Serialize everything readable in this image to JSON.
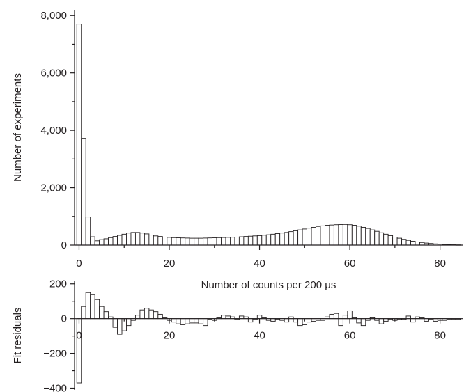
{
  "chart_data": [
    {
      "type": "bar",
      "xlabel": "Number of counts per 200 μs",
      "ylabel": "Number of experiments",
      "xlim": [
        -1,
        85
      ],
      "ylim": [
        0,
        8200
      ],
      "x_ticks": [
        0,
        20,
        40,
        60,
        80
      ],
      "x_tick_labels": [
        "0",
        "20",
        "40",
        "60",
        "80"
      ],
      "y_ticks": [
        0,
        2000,
        4000,
        6000,
        8000
      ],
      "y_tick_labels": [
        "0",
        "2,000",
        "4,000",
        "6,000",
        "8,000"
      ],
      "grid": false,
      "bin_width": 1,
      "x": [
        0,
        1,
        2,
        3,
        4,
        5,
        6,
        7,
        8,
        9,
        10,
        11,
        12,
        13,
        14,
        15,
        16,
        17,
        18,
        19,
        20,
        21,
        22,
        23,
        24,
        25,
        26,
        27,
        28,
        29,
        30,
        31,
        32,
        33,
        34,
        35,
        36,
        37,
        38,
        39,
        40,
        41,
        42,
        43,
        44,
        45,
        46,
        47,
        48,
        49,
        50,
        51,
        52,
        53,
        54,
        55,
        56,
        57,
        58,
        59,
        60,
        61,
        62,
        63,
        64,
        65,
        66,
        67,
        68,
        69,
        70,
        71,
        72,
        73,
        74,
        75,
        76,
        77,
        78,
        79,
        80,
        81,
        82,
        83,
        84
      ],
      "values": [
        7700,
        3720,
        980,
        290,
        150,
        190,
        220,
        260,
        300,
        340,
        380,
        420,
        440,
        440,
        420,
        390,
        350,
        320,
        300,
        280,
        270,
        260,
        255,
        250,
        245,
        240,
        240,
        240,
        245,
        250,
        255,
        260,
        265,
        270,
        275,
        280,
        290,
        300,
        310,
        320,
        330,
        345,
        360,
        380,
        400,
        420,
        440,
        470,
        500,
        530,
        560,
        590,
        620,
        650,
        670,
        690,
        700,
        710,
        715,
        720,
        710,
        690,
        660,
        620,
        580,
        530,
        480,
        430,
        380,
        330,
        280,
        240,
        200,
        165,
        135,
        110,
        90,
        70,
        55,
        42,
        32,
        24,
        18,
        12,
        8
      ]
    },
    {
      "type": "bar",
      "xlabel": "",
      "ylabel": "Fit residuals",
      "xlim": [
        -1,
        85
      ],
      "ylim": [
        -410,
        215
      ],
      "x_ticks": [
        0,
        20,
        40,
        60,
        80
      ],
      "x_tick_labels": [
        "0",
        "20",
        "40",
        "60",
        "80"
      ],
      "y_ticks": [
        -400,
        -200,
        0,
        200
      ],
      "y_tick_labels": [
        "−400",
        "−200",
        "0",
        "200"
      ],
      "grid": false,
      "bin_width": 1,
      "x": [
        0,
        1,
        2,
        3,
        4,
        5,
        6,
        7,
        8,
        9,
        10,
        11,
        12,
        13,
        14,
        15,
        16,
        17,
        18,
        19,
        20,
        21,
        22,
        23,
        24,
        25,
        26,
        27,
        28,
        29,
        30,
        31,
        32,
        33,
        34,
        35,
        36,
        37,
        38,
        39,
        40,
        41,
        42,
        43,
        44,
        45,
        46,
        47,
        48,
        49,
        50,
        51,
        52,
        53,
        54,
        55,
        56,
        57,
        58,
        59,
        60,
        61,
        62,
        63,
        64,
        65,
        66,
        67,
        68,
        69,
        70,
        71,
        72,
        73,
        74,
        75,
        76,
        77,
        78,
        79,
        80,
        81,
        82,
        83,
        84
      ],
      "values": [
        -370,
        70,
        150,
        140,
        110,
        70,
        40,
        10,
        -50,
        -90,
        -70,
        -40,
        -10,
        20,
        50,
        60,
        50,
        40,
        25,
        5,
        -10,
        -20,
        -30,
        -35,
        -30,
        -25,
        -25,
        -30,
        -40,
        -5,
        -10,
        5,
        20,
        15,
        10,
        -5,
        15,
        10,
        -20,
        -5,
        20,
        5,
        -10,
        -15,
        -5,
        -10,
        -20,
        10,
        -20,
        -40,
        -35,
        -20,
        -15,
        -10,
        -10,
        10,
        25,
        30,
        -40,
        20,
        45,
        5,
        -25,
        -40,
        -10,
        5,
        -10,
        -30,
        -15,
        -5,
        -10,
        -5,
        -5,
        15,
        -20,
        10,
        5,
        -15,
        -5,
        -15,
        -10,
        -10,
        -5,
        -5,
        -5
      ]
    }
  ]
}
